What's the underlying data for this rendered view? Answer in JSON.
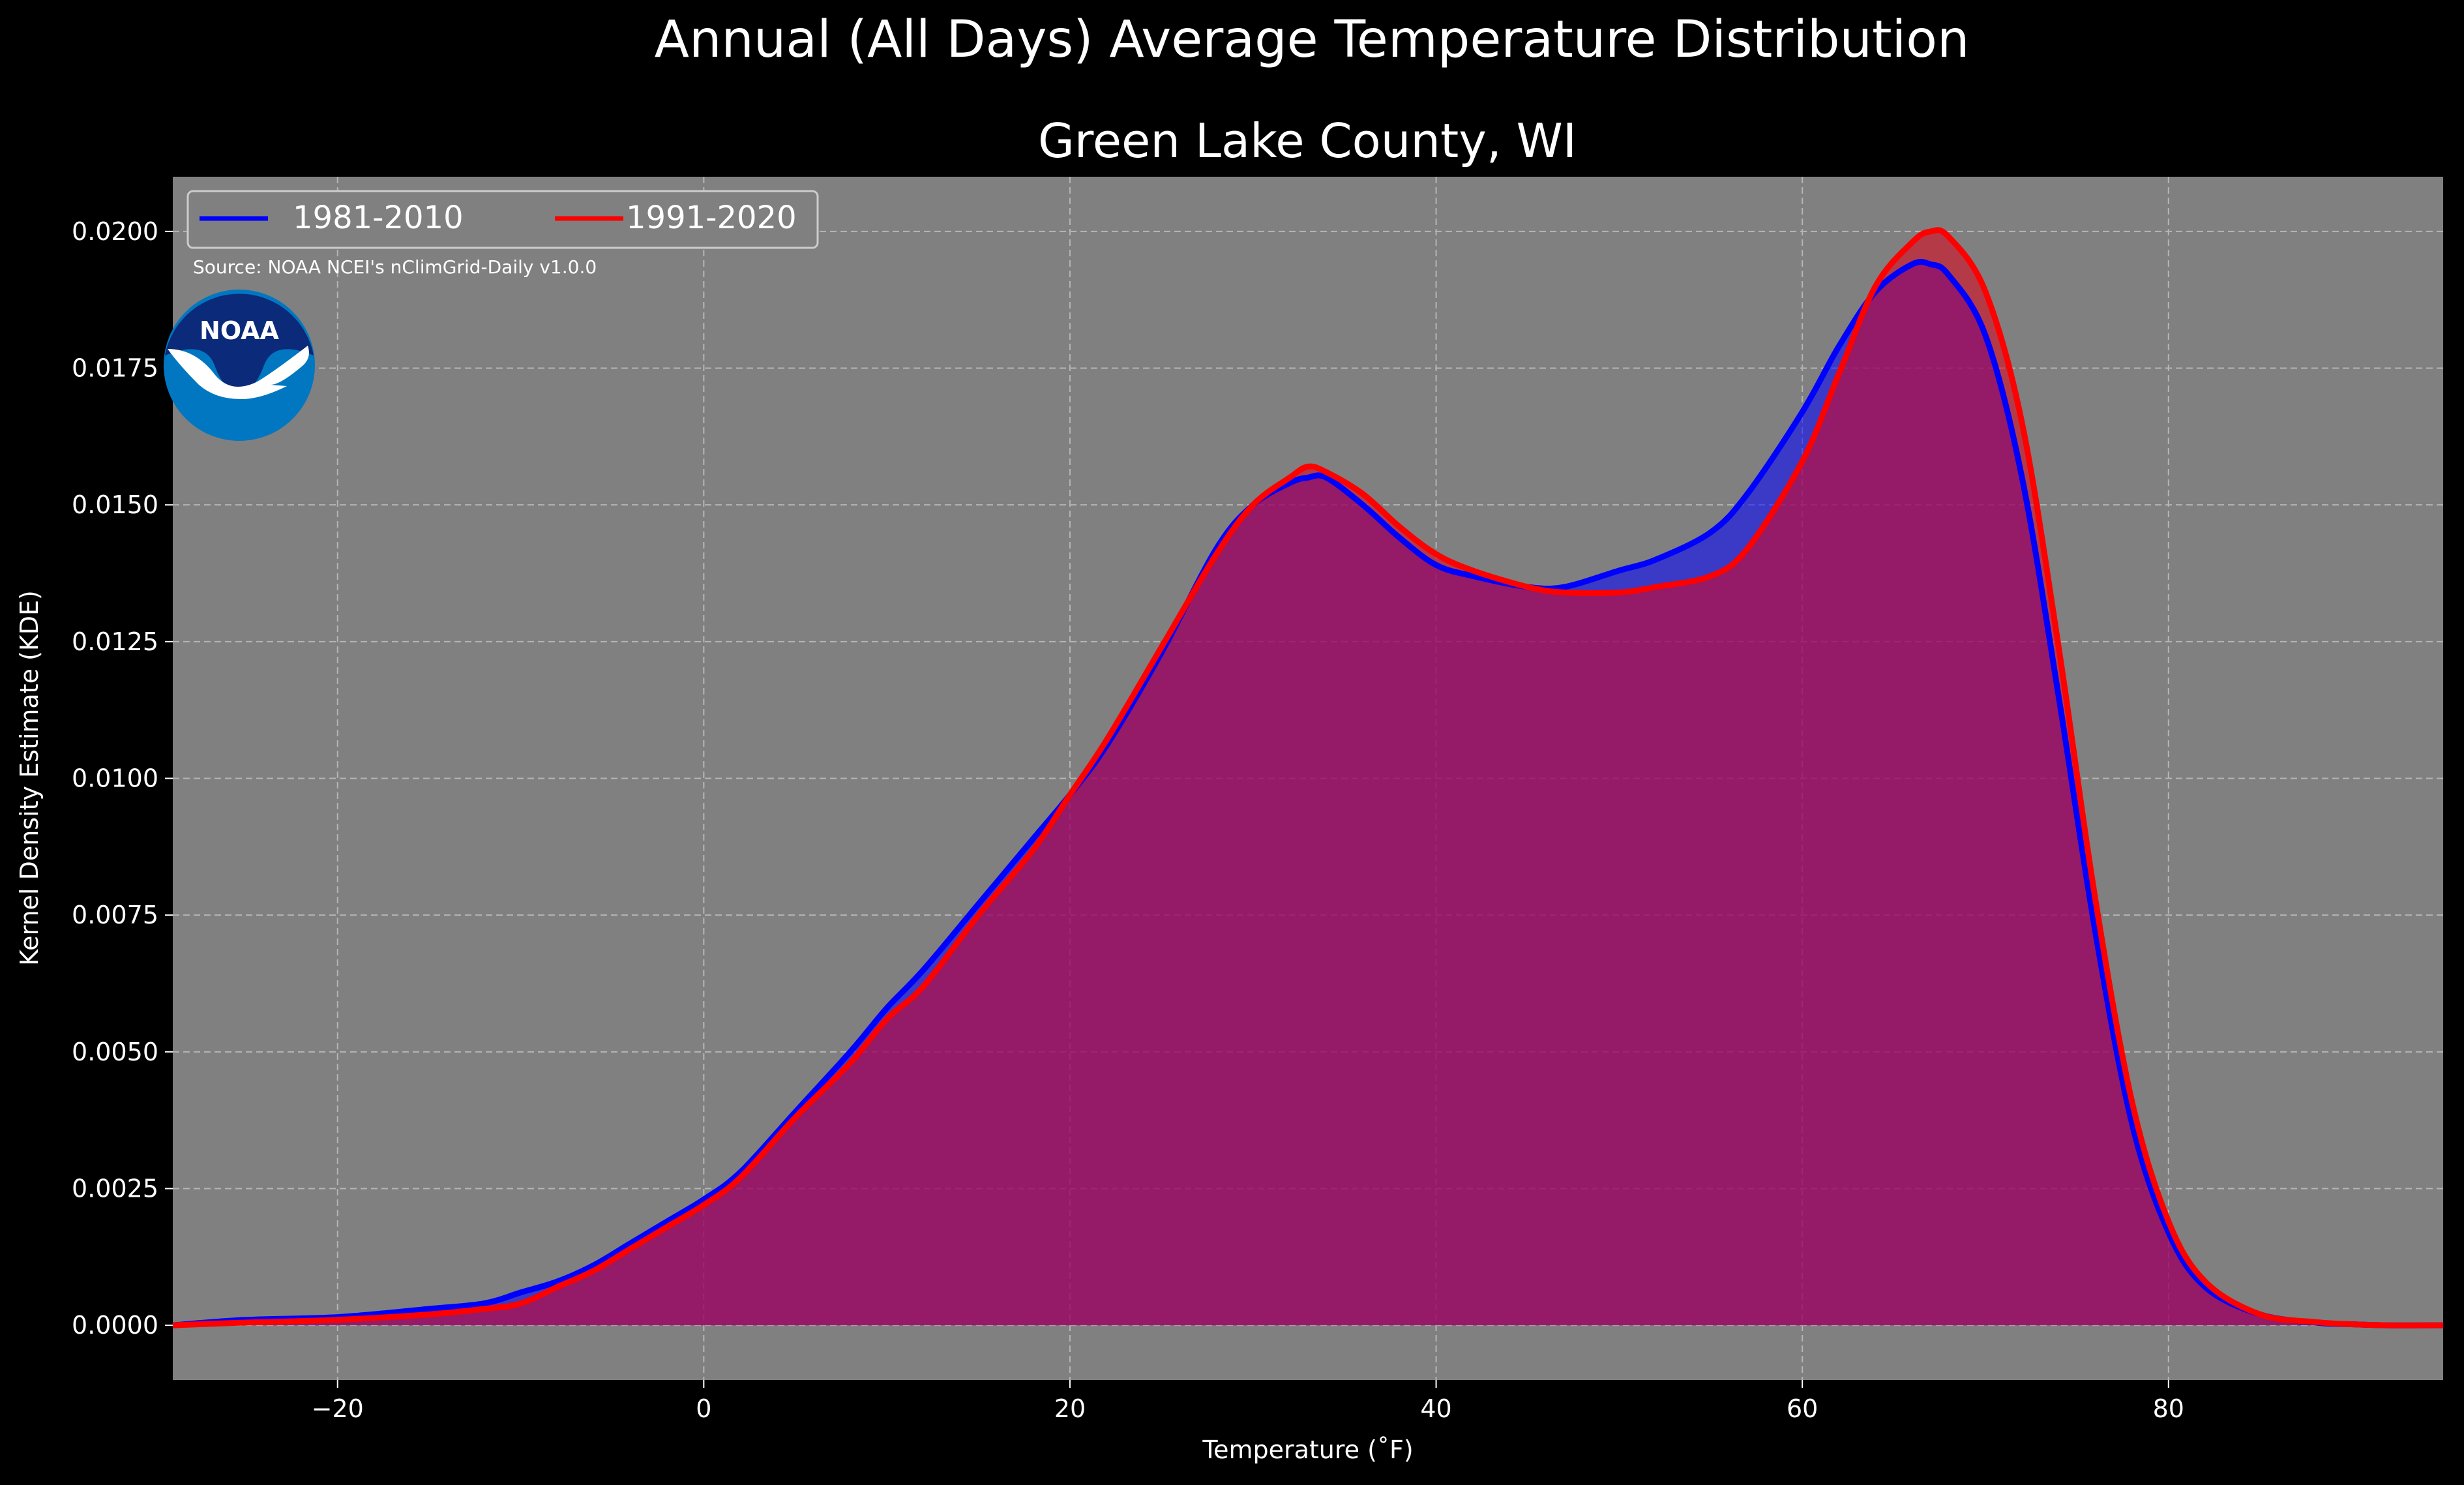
{
  "figure": {
    "suptitle": "Annual (All Days) Average Temperature Distribution",
    "background": "#000000",
    "plot_background": "#808080",
    "text_color": "#ffffff"
  },
  "source_note": "Source: NOAA NCEI's nClimGrid-Daily v1.0.0",
  "logo": {
    "icon": "noaa-logo-icon",
    "text": "NOAA",
    "colors": {
      "outer": "#0077c0",
      "inner": "#0b2a7a",
      "bird": "#ffffff"
    }
  },
  "chart_data": {
    "type": "area",
    "title": "Green Lake County, WI",
    "xlabel": "Temperature ($^\\circ$F)",
    "xlabel_display": "Temperature (˚F)",
    "ylabel": "Kernel Density Estimate (KDE)",
    "xlim": [
      -29,
      95
    ],
    "ylim": [
      -0.001,
      0.021
    ],
    "xticks": [
      -20,
      0,
      20,
      40,
      60,
      80
    ],
    "xtick_labels": [
      "−20",
      "0",
      "20",
      "40",
      "60",
      "80"
    ],
    "yticks": [
      0.0,
      0.0025,
      0.005,
      0.0075,
      0.01,
      0.0125,
      0.015,
      0.0175,
      0.02
    ],
    "ytick_labels": [
      "0.0000",
      "0.0025",
      "0.0050",
      "0.0075",
      "0.0100",
      "0.0125",
      "0.0150",
      "0.0175",
      "0.0200"
    ],
    "grid": true,
    "legend": {
      "placement": "top-left",
      "ncol": 2
    },
    "series": [
      {
        "name": "1981-2010",
        "color": "#0000ff",
        "fill": "#0000ff",
        "x": [
          -29,
          -25,
          -20,
          -15,
          -12,
          -10,
          -8,
          -6,
          -4,
          -2,
          0,
          2,
          5,
          8,
          10,
          12,
          15,
          18,
          20,
          22,
          25,
          28,
          30,
          32,
          33,
          34,
          36,
          38,
          40,
          42,
          45,
          47,
          50,
          52,
          55,
          57,
          60,
          62,
          64,
          66,
          67,
          68,
          70,
          72,
          74,
          76,
          78,
          80,
          82,
          85,
          88,
          90,
          92,
          95
        ],
        "y": [
          0.0,
          0.0001,
          0.00015,
          0.0003,
          0.0004,
          0.0006,
          0.0008,
          0.0011,
          0.0015,
          0.0019,
          0.0023,
          0.0028,
          0.0039,
          0.005,
          0.0058,
          0.0065,
          0.0077,
          0.0089,
          0.0097,
          0.0106,
          0.0123,
          0.0142,
          0.015,
          0.0154,
          0.0155,
          0.0155,
          0.015,
          0.0144,
          0.0139,
          0.0137,
          0.0135,
          0.0135,
          0.0138,
          0.014,
          0.0145,
          0.0152,
          0.0167,
          0.0179,
          0.0189,
          0.0194,
          0.0194,
          0.0192,
          0.0181,
          0.0155,
          0.0115,
          0.0072,
          0.0037,
          0.0017,
          0.0007,
          0.0002,
          5e-05,
          2e-05,
          0.0,
          0.0
        ]
      },
      {
        "name": "1991-2020",
        "color": "#ff0000",
        "fill": "#e0001a",
        "x": [
          -29,
          -25,
          -20,
          -15,
          -12,
          -10,
          -8,
          -6,
          -4,
          -2,
          0,
          2,
          5,
          8,
          10,
          12,
          15,
          18,
          20,
          22,
          25,
          28,
          30,
          32,
          33,
          34,
          36,
          38,
          40,
          42,
          45,
          47,
          50,
          52,
          55,
          57,
          60,
          62,
          64,
          66,
          67,
          68,
          70,
          72,
          74,
          76,
          78,
          80,
          82,
          85,
          88,
          90,
          92,
          95
        ],
        "y": [
          0.0,
          5e-05,
          0.0001,
          0.0002,
          0.0003,
          0.0004,
          0.0007,
          0.001,
          0.0014,
          0.0018,
          0.0022,
          0.0027,
          0.0038,
          0.0048,
          0.0056,
          0.0062,
          0.0075,
          0.0087,
          0.0097,
          0.0107,
          0.0124,
          0.0141,
          0.015,
          0.0155,
          0.0157,
          0.0156,
          0.0152,
          0.0146,
          0.0141,
          0.0138,
          0.0135,
          0.0134,
          0.0134,
          0.0135,
          0.0137,
          0.0142,
          0.0158,
          0.0174,
          0.019,
          0.0198,
          0.02,
          0.0199,
          0.0189,
          0.0165,
          0.0124,
          0.0078,
          0.0041,
          0.0019,
          0.0008,
          0.0002,
          6e-05,
          2e-05,
          0.0,
          0.0
        ]
      }
    ]
  }
}
